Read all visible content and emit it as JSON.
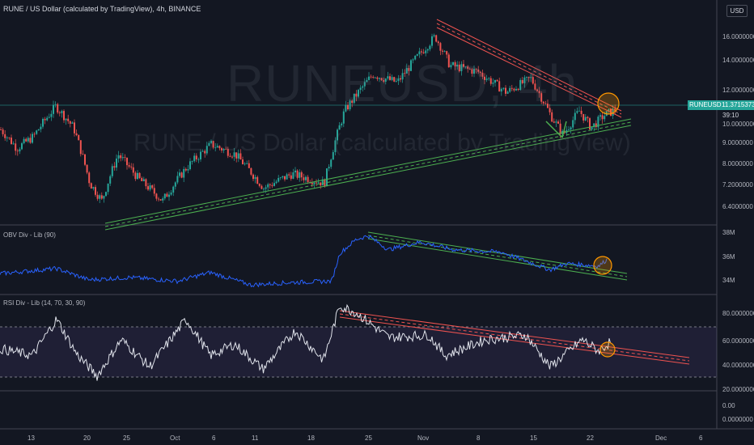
{
  "header": {
    "title": "RUNE / US Dollar (calculated by TradingView), 4h, BINANCE",
    "currency": "USD"
  },
  "watermark": {
    "symbol": "RUNEUSD, 4h",
    "description": "RUNE / US Dollar (calculated by TradingView)"
  },
  "last_price": {
    "symbol": "RUNEUSD",
    "value": "11.3715373",
    "countdown": "39:10"
  },
  "panes": {
    "price": {
      "y_ticks": [
        "16.0000000",
        "14.0000000",
        "12.0000000",
        "10.0000000",
        "9.0000000",
        "8.0000000",
        "7.2000000",
        "6.4000000"
      ]
    },
    "obv": {
      "label": "OBV Div - Lib (90)",
      "y_ticks": [
        "38M",
        "36M",
        "34M"
      ]
    },
    "rsi": {
      "label": "RSI Div - Lib (14, 70, 30, 90)",
      "y_ticks": [
        "80.0000000",
        "60.0000000",
        "40.0000000",
        "20.0000000"
      ]
    },
    "bottom": {
      "y_ticks": [
        "0.00",
        "0.0000000"
      ]
    }
  },
  "x_axis": {
    "ticks": [
      "13",
      "20",
      "25",
      "Oct",
      "6",
      "11",
      "18",
      "25",
      "Nov",
      "8",
      "15",
      "22",
      "Dec",
      "6"
    ]
  },
  "chart_data": [
    {
      "type": "candlestick",
      "title": "RUNE / US Dollar (calculated by TradingView), 4h, BINANCE",
      "y_scale": "log",
      "ylim": [
        6.1,
        19.5
      ],
      "series": [
        {
          "name": "RUNEUSD",
          "approx_path": [
            [
              0,
              10.2
            ],
            [
              20,
              9.2
            ],
            [
              40,
              9.8
            ],
            [
              68,
              11.6
            ],
            [
              90,
              10.3
            ],
            [
              110,
              7.6
            ],
            [
              125,
              6.9
            ],
            [
              145,
              8.9
            ],
            [
              170,
              7.8
            ],
            [
              200,
              6.9
            ],
            [
              230,
              8.3
            ],
            [
              260,
              9.4
            ],
            [
              290,
              8.9
            ],
            [
              325,
              7.4
            ],
            [
              360,
              8.0
            ],
            [
              400,
              7.6
            ],
            [
              425,
              11.3
            ],
            [
              460,
              13.8
            ],
            [
              490,
              13.2
            ],
            [
              520,
              15.6
            ],
            [
              537,
              17.0
            ],
            [
              555,
              14.5
            ],
            [
              590,
              14.0
            ],
            [
              625,
              12.5
            ],
            [
              655,
              13.5
            ],
            [
              680,
              11.0
            ],
            [
              695,
              9.9
            ],
            [
              715,
              11.3
            ],
            [
              730,
              10.3
            ],
            [
              745,
              11.0
            ],
            [
              760,
              11.37
            ]
          ]
        }
      ],
      "trendlines": [
        {
          "color": "red",
          "from": [
            537,
            17.4
          ],
          "to": [
            768,
            11.1
          ]
        },
        {
          "color": "green",
          "from": [
            130,
            6.2
          ],
          "to": [
            768,
            10.1
          ]
        }
      ]
    },
    {
      "type": "line",
      "title": "OBV Div - Lib (90)",
      "ylim": [
        33.5,
        38.5
      ],
      "series": [
        {
          "name": "OBV",
          "approx_path": [
            [
              0,
              34.9
            ],
            [
              70,
              35.3
            ],
            [
              110,
              34.4
            ],
            [
              160,
              34.6
            ],
            [
              220,
              34.3
            ],
            [
              260,
              35.0
            ],
            [
              310,
              34.0
            ],
            [
              360,
              34.2
            ],
            [
              410,
              34.3
            ],
            [
              420,
              36.5
            ],
            [
              440,
              37.6
            ],
            [
              455,
              37.9
            ],
            [
              480,
              36.8
            ],
            [
              520,
              37.4
            ],
            [
              560,
              36.8
            ],
            [
              620,
              36.6
            ],
            [
              680,
              35.2
            ],
            [
              700,
              35.7
            ],
            [
              740,
              35.5
            ],
            [
              750,
              36.0
            ]
          ]
        }
      ],
      "trendlines": [
        {
          "color": "green",
          "from": [
            455,
            38.2
          ],
          "to": [
            772,
            35.2
          ]
        }
      ]
    },
    {
      "type": "line",
      "title": "RSI Div - Lib (14, 70, 30, 90)",
      "ylim": [
        15,
        95
      ],
      "reference_lines": [
        70,
        30
      ],
      "series": [
        {
          "name": "RSI",
          "approx_path": [
            [
              0,
              50
            ],
            [
              40,
              44
            ],
            [
              70,
              76
            ],
            [
              95,
              45
            ],
            [
              120,
              26
            ],
            [
              150,
              58
            ],
            [
              185,
              34
            ],
            [
              230,
              76
            ],
            [
              260,
              44
            ],
            [
              290,
              54
            ],
            [
              325,
              32
            ],
            [
              365,
              66
            ],
            [
              400,
              40
            ],
            [
              420,
              88
            ],
            [
              440,
              82
            ],
            [
              480,
              60
            ],
            [
              530,
              62
            ],
            [
              550,
              44
            ],
            [
              600,
              58
            ],
            [
              650,
              62
            ],
            [
              680,
              34
            ],
            [
              700,
              46
            ],
            [
              720,
              58
            ],
            [
              740,
              48
            ],
            [
              755,
              56
            ]
          ]
        }
      ],
      "trendlines": [
        {
          "color": "red",
          "from": [
            420,
            84
          ],
          "to": [
            852,
            49
          ]
        }
      ]
    }
  ]
}
